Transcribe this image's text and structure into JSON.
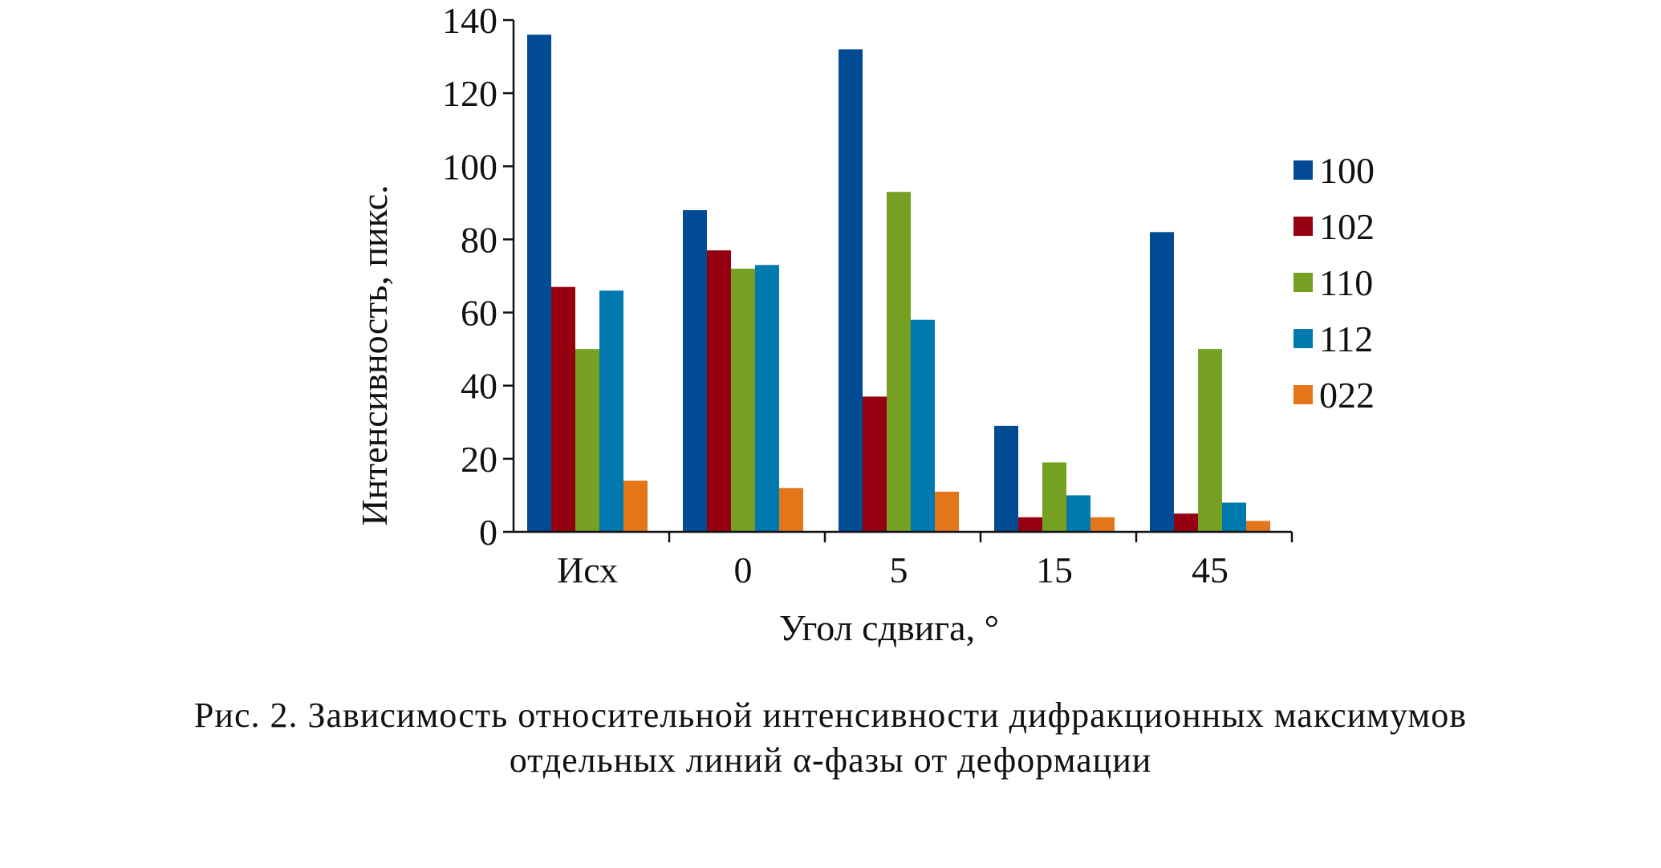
{
  "chart_data": {
    "type": "bar",
    "title": "",
    "xlabel": "Угол сдвига, °",
    "ylabel": "Интенсивность, пикс.",
    "categories": [
      "Исх",
      "0",
      "5",
      "15",
      "45"
    ],
    "ylim": [
      0,
      140
    ],
    "yticks": [
      "0",
      "20",
      "40",
      "60",
      "80",
      "100",
      "120",
      "140"
    ],
    "legend_position": "right",
    "grid": false,
    "series": [
      {
        "name": "100",
        "color": "#004B93",
        "values": [
          136,
          88,
          132,
          29,
          82
        ]
      },
      {
        "name": "102",
        "color": "#950010",
        "values": [
          67,
          77,
          37,
          4,
          5
        ]
      },
      {
        "name": "110",
        "color": "#76A022",
        "values": [
          50,
          72,
          93,
          19,
          50
        ]
      },
      {
        "name": "112",
        "color": "#0079AF",
        "values": [
          66,
          73,
          58,
          10,
          8
        ]
      },
      {
        "name": "022",
        "color": "#E37618",
        "values": [
          14,
          12,
          11,
          4,
          3
        ]
      }
    ]
  },
  "caption": {
    "line1": "Рис. 2. Зависимость относительной интенсивности дифракционных максимумов",
    "line2": "отдельных линий α-фазы от деформации"
  }
}
